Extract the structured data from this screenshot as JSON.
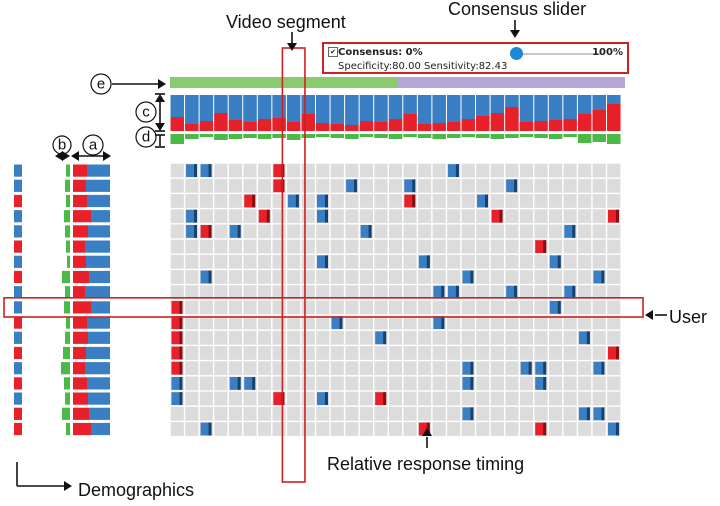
{
  "annotations": {
    "video_segment": "Video segment",
    "consensus_slider": "Consensus slider",
    "user": "User",
    "relative_response_timing": "Relative response timing",
    "demographics": "Demographics",
    "label_a": "a",
    "label_b": "b",
    "label_c": "c",
    "label_d": "d",
    "label_e": "e"
  },
  "consensus_panel": {
    "checkbox_mark": "✔",
    "consensus_label": "Consensus: 0%",
    "max_label": "100%",
    "metrics": "Specificity:80.00 Sensitivity:82.43",
    "consensus_value": 0
  },
  "colors": {
    "red": "#e8202a",
    "blue": "#3a7fc4",
    "green": "#4cb848",
    "light_green": "#8acb6f",
    "lavender": "#b7a5d8",
    "cell_gray": "#dcdcdc",
    "highlight": "#cc2222"
  },
  "grid": {
    "columns": 31,
    "rows": 18,
    "highlighted_row": 9,
    "highlighted_column": 8
  }
}
